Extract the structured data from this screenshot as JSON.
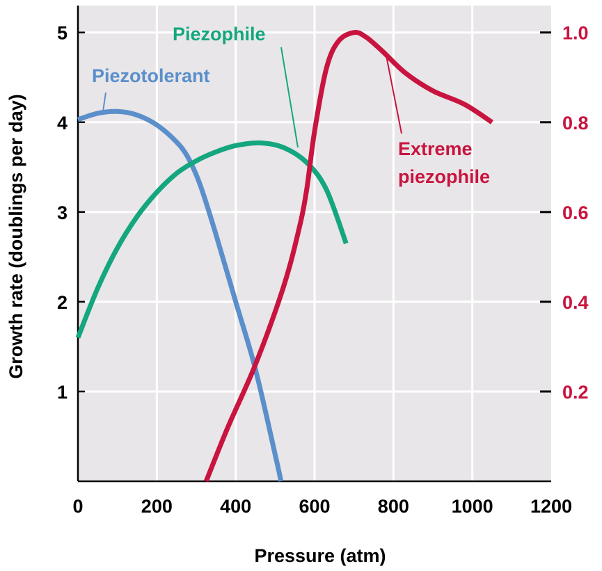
{
  "chart_data": {
    "type": "line",
    "xlabel": "Pressure (atm)",
    "ylabel": "Growth rate (doublings per day)",
    "xlim": [
      0,
      1200
    ],
    "ylim": [
      0,
      5.3
    ],
    "y2lim": [
      0,
      1.06
    ],
    "xticks": [
      0,
      200,
      400,
      600,
      800,
      1000,
      1200
    ],
    "xtick_labels": [
      "0",
      "200",
      "400",
      "600",
      "800",
      "1000",
      "1200"
    ],
    "yticks": [
      1,
      2,
      3,
      4,
      5
    ],
    "ytick_labels": [
      "1",
      "2",
      "3",
      "4",
      "5"
    ],
    "y2ticks": [
      0.2,
      0.4,
      0.6,
      0.8,
      1.0
    ],
    "y2tick_labels": [
      "0.2",
      "0.4",
      "0.6",
      "0.8",
      "1.0"
    ],
    "grid": true,
    "colors": {
      "background": "#e8e6e8",
      "grid": "#ffffff",
      "piezotolerant": "#5b8fcb",
      "piezophile": "#14a67f",
      "extreme": "#c8143f",
      "axis_text": "#000000",
      "y2_text": "#c8143f"
    },
    "series": [
      {
        "name": "Piezotolerant",
        "axis": "left",
        "x": [
          0,
          50,
          100,
          150,
          200,
          250,
          280,
          310,
          350,
          400,
          450,
          500,
          515
        ],
        "y": [
          4.03,
          4.1,
          4.12,
          4.08,
          3.97,
          3.78,
          3.6,
          3.3,
          2.75,
          2.0,
          1.25,
          0.3,
          0.0
        ]
      },
      {
        "name": "Piezophile",
        "axis": "left",
        "x": [
          0,
          50,
          100,
          150,
          200,
          250,
          300,
          350,
          400,
          460,
          520,
          580,
          630,
          680
        ],
        "y": [
          1.6,
          2.15,
          2.6,
          2.95,
          3.22,
          3.43,
          3.57,
          3.67,
          3.74,
          3.77,
          3.72,
          3.55,
          3.25,
          2.65
        ]
      },
      {
        "name": "Extreme piezophile",
        "axis": "right",
        "x": [
          325,
          380,
          450,
          520,
          560,
          580,
          600,
          630,
          660,
          700,
          730,
          770,
          830,
          900,
          980,
          1050
        ],
        "y": [
          0.0,
          0.12,
          0.26,
          0.43,
          0.56,
          0.65,
          0.78,
          0.92,
          0.98,
          1.0,
          0.99,
          0.96,
          0.91,
          0.87,
          0.84,
          0.8
        ]
      }
    ],
    "annotations": [
      {
        "series": "Piezotolerant",
        "text": "Piezotolerant"
      },
      {
        "series": "Piezophile",
        "text": "Piezophile"
      },
      {
        "series": "Extreme piezophile",
        "text_line1": "Extreme",
        "text_line2": "piezophile"
      }
    ]
  }
}
